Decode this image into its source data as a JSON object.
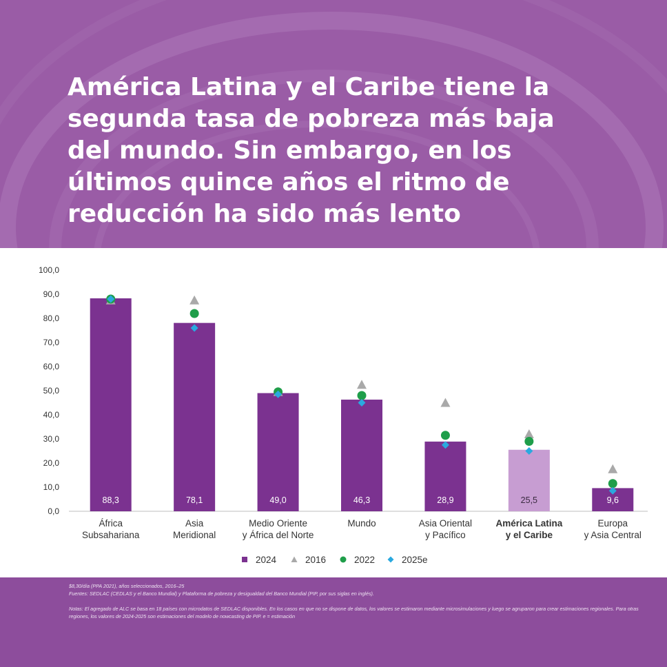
{
  "header": {
    "title_lines": [
      "América Latina y el Caribe tiene la",
      "segunda tasa de pobreza más baja",
      "del mundo. Sin embargo, en los",
      "últimos quince años el ritmo de",
      "reducción ha sido más lento"
    ]
  },
  "colors": {
    "background": "#9c5fa8",
    "bar": "#7b3290",
    "bar_highlight": "#c79dd2",
    "s2016": "#a9a9a9",
    "s2022": "#1f9e4a",
    "s2025": "#2aa9df"
  },
  "chart_data": {
    "type": "bar",
    "ylim": [
      0,
      100
    ],
    "yticks": [
      "0,0",
      "10,0",
      "20,0",
      "30,0",
      "40,0",
      "50,0",
      "60,0",
      "70,0",
      "80,0",
      "90,0",
      "100,0"
    ],
    "categories": [
      [
        "África",
        "Subsahariana"
      ],
      [
        "Asia",
        "Meridional"
      ],
      [
        "Medio Oriente",
        "y África del Norte"
      ],
      [
        "Mundo"
      ],
      [
        "Asia Oriental",
        "y Pacífico"
      ],
      [
        "América Latina",
        "y el Caribe"
      ],
      [
        "Europa",
        "y Asia Central"
      ]
    ],
    "highlight_index": 5,
    "series": [
      {
        "name": "2024",
        "marker": "bar",
        "values": [
          88.3,
          78.1,
          49.0,
          46.3,
          28.9,
          25.5,
          9.6
        ],
        "labels": [
          "88,3",
          "78,1",
          "49,0",
          "46,3",
          "28,9",
          "25,5",
          "9,6"
        ]
      },
      {
        "name": "2016",
        "marker": "triangle",
        "values": [
          87.5,
          87.5,
          49.5,
          52.5,
          45.0,
          32.0,
          17.5
        ]
      },
      {
        "name": "2022",
        "marker": "circle",
        "values": [
          88.0,
          82.0,
          49.5,
          48.0,
          31.5,
          29.0,
          11.5
        ]
      },
      {
        "name": "2025e",
        "marker": "diamond",
        "values": [
          88.0,
          76.0,
          48.5,
          45.0,
          27.5,
          25.0,
          8.5
        ]
      }
    ]
  },
  "footer": {
    "source_line1": "$8,30/día (PPA 2021), años seleccionados, 2016–25",
    "source_line2_label": "Fuentes:",
    "source_line2": " SEDLAC (CEDLAS y el Banco Mundial) y Plataforma de pobreza y desigualdad del Banco Mundial (PIP, por sus siglas en inglés).",
    "notes_label": "Notas:",
    "notes_text": " El agregado de ALC se basa en 18 países con microdatos de SEDLAC disponibles. En los casos en que no se dispone de datos, los valores se estimaron mediante microsimulaciones y luego se agruparon para crear estimaciones regionales. Para otras regiones, los valores de 2024-2025 son estimaciones del modelo de nowcasting de PIP. e = estimación"
  }
}
